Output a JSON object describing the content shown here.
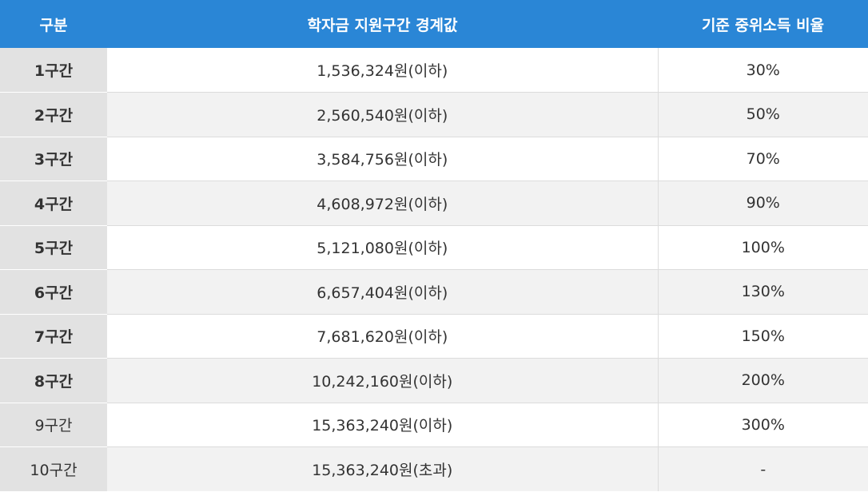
{
  "header": {
    "col_section": "구분",
    "col_threshold": "학자금 지원구간 경계값",
    "col_ratio": "기준 중위소득 비율"
  },
  "rows": [
    {
      "section": "1구간",
      "threshold": "1,536,324원(이하)",
      "ratio": "30%"
    },
    {
      "section": "2구간",
      "threshold": "2,560,540원(이하)",
      "ratio": "50%"
    },
    {
      "section": "3구간",
      "threshold": "3,584,756원(이하)",
      "ratio": "70%"
    },
    {
      "section": "4구간",
      "threshold": "4,608,972원(이하)",
      "ratio": "90%"
    },
    {
      "section": "5구간",
      "threshold": "5,121,080원(이하)",
      "ratio": "100%"
    },
    {
      "section": "6구간",
      "threshold": "6,657,404원(이하)",
      "ratio": "130%"
    },
    {
      "section": "7구간",
      "threshold": "7,681,620원(이하)",
      "ratio": "150%"
    },
    {
      "section": "8구간",
      "threshold": "10,242,160원(이하)",
      "ratio": "200%"
    },
    {
      "section": "9구간",
      "threshold": "15,363,240원(이하)",
      "ratio": "300%"
    },
    {
      "section": "10구간",
      "threshold": "15,363,240원(초과)",
      "ratio": "-"
    }
  ],
  "colors": {
    "header_bg": "#2a86d6",
    "label_bg": "#e2e2e2",
    "alt_row_bg": "#f2f2f2"
  }
}
